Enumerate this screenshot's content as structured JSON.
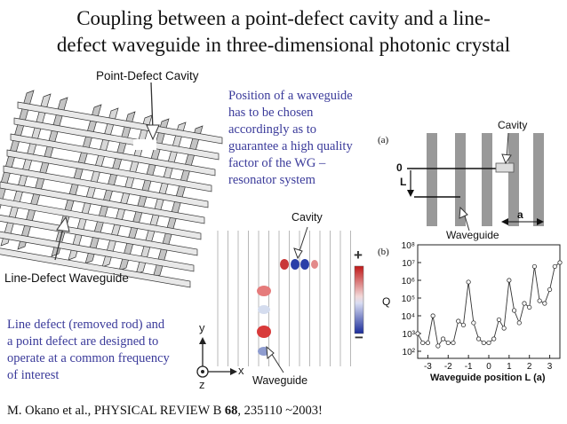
{
  "slide": {
    "title_line1": "Coupling between a point-defect cavity and a line-",
    "title_line2": "defect waveguide in three-dimensional photonic crystal",
    "position_note": [
      "Position of a waveguide",
      "has to be chosen",
      "accordingly as to",
      "guarantee a high quality",
      "factor of the WG –",
      "resonator system"
    ],
    "defect_note": [
      "Line defect (removed rod) and",
      "a point defect are designed to",
      "operate at a common frequency",
      "of interest"
    ],
    "reference_prefix": "M. Okano et al., PHYSICAL REVIEW B ",
    "reference_volume": "68",
    "reference_suffix": ", 235110 ~2003!"
  },
  "crystal_figure": {
    "cavity_label": "Point-Defect Cavity",
    "waveguide_label": "Line-Defect Waveguide"
  },
  "field_figure": {
    "cavity_label": "Cavity",
    "waveguide_label": "Waveguide",
    "colorbar_plus": "+",
    "colorbar_minus": "−",
    "axis_y": "y",
    "axis_x": "x",
    "axis_z": "z"
  },
  "schematic_figure": {
    "panel_label": "(a)",
    "cavity_label": "Cavity",
    "zero_label": "0",
    "L_label": "L",
    "a_label": "a",
    "waveguide_label": "Waveguide"
  },
  "chart_data": {
    "type": "line",
    "panel_label": "(b)",
    "xlabel": "Waveguide position L (a)",
    "ylabel": "Q",
    "xlim": [
      -3.5,
      3.5
    ],
    "ylim_log10": [
      1.6,
      8
    ],
    "x_ticks": [
      "-3",
      "-2",
      "-1",
      "0",
      "1",
      "2",
      "3"
    ],
    "y_ticks": [
      "10²",
      "10³",
      "10⁴",
      "10⁵",
      "10⁶",
      "10⁷",
      "10⁸"
    ],
    "log_y": true,
    "x": [
      -3.5,
      -3.25,
      -3.0,
      -2.75,
      -2.5,
      -2.25,
      -2.0,
      -1.75,
      -1.5,
      -1.25,
      -1.0,
      -0.75,
      -0.5,
      -0.25,
      0.0,
      0.25,
      0.5,
      0.75,
      1.0,
      1.25,
      1.5,
      1.75,
      2.0,
      2.25,
      2.5,
      2.75,
      3.0,
      3.25,
      3.5
    ],
    "values": [
      1000.0,
      300.0,
      300.0,
      10000.0,
      200.0,
      500.0,
      300.0,
      300.0,
      5000.0,
      3000.0,
      800000.0,
      4000.0,
      500.0,
      300.0,
      300.0,
      500.0,
      6000.0,
      2000.0,
      1000000.0,
      20000.0,
      4000.0,
      50000.0,
      30000.0,
      6000000.0,
      70000.0,
      50000.0,
      300000.0,
      6000000.0,
      10000000.0
    ]
  }
}
